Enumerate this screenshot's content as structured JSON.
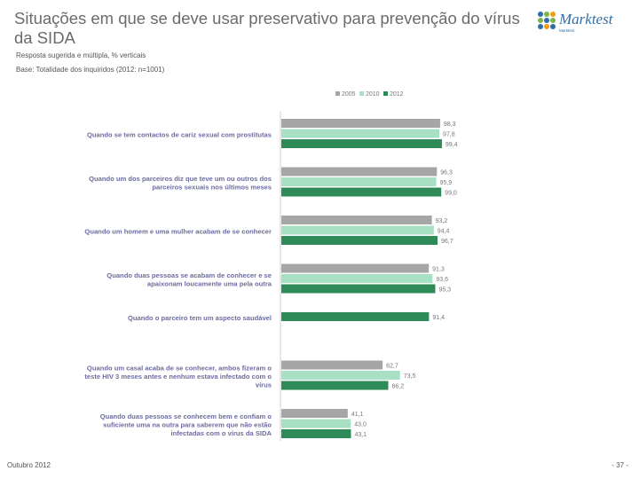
{
  "header": {
    "title": "Situações em que se deve usar preservativo para prevenção do vírus da SIDA",
    "subtitle": "Resposta sugerida e múltipla, % verticais",
    "base": "Base: Totalidade dos inquiridos (2012: n=1001)"
  },
  "logo": {
    "name": "Marktest",
    "tagline": "Marktest"
  },
  "footer": {
    "date": "Outubro 2012",
    "page": "- 37 -"
  },
  "colors": {
    "series_2005": "#a6a6a6",
    "series_2010": "#a8e0c4",
    "series_2012": "#2e8b57",
    "label_text": "#6c6ca0"
  },
  "chart_data": {
    "type": "bar",
    "orientation": "horizontal",
    "title": "Situações em que se deve usar preservativo para prevenção do vírus da SIDA",
    "xlim": [
      0,
      100
    ],
    "legend_position": "top",
    "categories": [
      [
        "Quando se tem contactos de cariz sexual com prostitutas"
      ],
      [
        "Quando um dos parceiros diz que teve um ou outros dos",
        "parceiros sexuais nos últimos meses"
      ],
      [
        "Quando um homem e uma mulher acabam de se conhecer"
      ],
      [
        "Quando duas pessoas se acabam de conhecer e se",
        "apaixonam loucamente uma pela outra"
      ],
      [
        "Quando o parceiro tem um aspecto saudável"
      ],
      [
        "Quando um casal acaba de se conhecer, ambos fizeram o",
        "teste HIV 3 meses antes e nenhum estava infectado com o",
        "vírus"
      ],
      [
        "Quando duas pessoas se conhecem bem e confiam o",
        "suficiente uma na outra para saberem que não estão",
        "infectadas com o vírus da SIDA"
      ]
    ],
    "series": [
      {
        "name": "2005",
        "values": [
          98.3,
          96.3,
          93.2,
          91.3,
          null,
          62.7,
          41.1
        ],
        "labels": [
          "98,3",
          "96,3",
          "93,2",
          "91,3",
          "",
          "62,7",
          "41,1"
        ]
      },
      {
        "name": "2010",
        "values": [
          97.8,
          95.9,
          94.4,
          93.6,
          null,
          73.5,
          43.0
        ],
        "labels": [
          "97,8",
          "95,9",
          "94,4",
          "93,6",
          "",
          "73,5",
          "43,0"
        ]
      },
      {
        "name": "2012",
        "values": [
          99.4,
          99.0,
          96.7,
          95.3,
          91.4,
          66.2,
          43.1
        ],
        "labels": [
          "99,4",
          "99,0",
          "96,7",
          "95,3",
          "91,4",
          "66,2",
          "43,1"
        ]
      }
    ]
  }
}
